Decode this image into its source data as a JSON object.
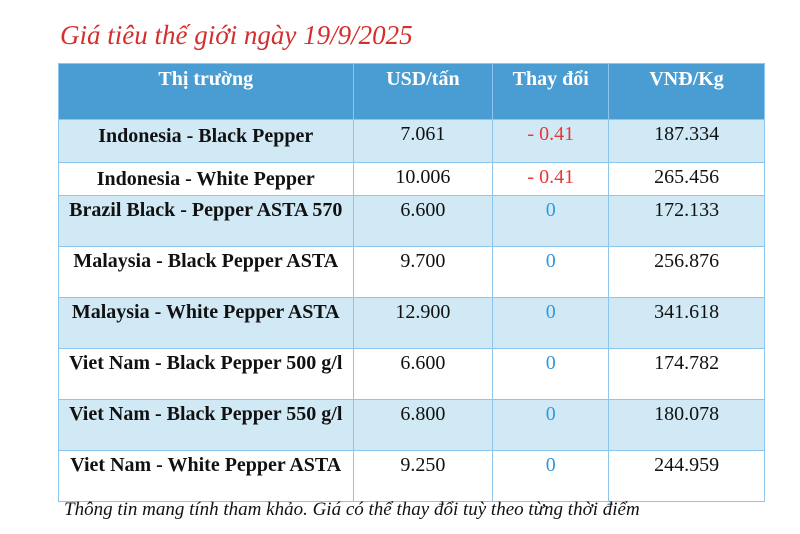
{
  "title": "Giá tiêu thế giới ngày 19/9/2025",
  "headers": [
    "Thị trường",
    "USD/tấn",
    "Thay đổi",
    "VNĐ/Kg"
  ],
  "rows": [
    {
      "market": "Indonesia - Black Pepper",
      "usd": "7.061",
      "change": "- 0.41",
      "vnd": "187.334"
    },
    {
      "market": "Indonesia - White Pepper",
      "usd": "10.006",
      "change": "- 0.41",
      "vnd": "265.456"
    },
    {
      "market": "Brazil Black - Pepper ASTA 570",
      "usd": "6.600",
      "change": "0",
      "vnd": "172.133"
    },
    {
      "market": "Malaysia - Black Pepper ASTA",
      "usd": "9.700",
      "change": "0",
      "vnd": "256.876"
    },
    {
      "market": "Malaysia - White Pepper ASTA",
      "usd": "12.900",
      "change": "0",
      "vnd": "341.618"
    },
    {
      "market": "Viet Nam - Black Pepper 500 g/l",
      "usd": "6.600",
      "change": "0",
      "vnd": "174.782"
    },
    {
      "market": "Viet Nam - Black Pepper 550 g/l",
      "usd": "6.800",
      "change": "0",
      "vnd": "180.078"
    },
    {
      "market": "Viet Nam - White Pepper ASTA",
      "usd": "9.250",
      "change": "0",
      "vnd": "244.959"
    }
  ],
  "note": "Thông tin mang tính tham khảo. Giá có thể thay đổi tuỳ theo từng thời điểm",
  "colors": {
    "title": "#d32f2f",
    "header": "#4a9dd3",
    "negative": "#e53935",
    "zero": "#2f9ae0",
    "row_alt": "#d0e9f5"
  }
}
